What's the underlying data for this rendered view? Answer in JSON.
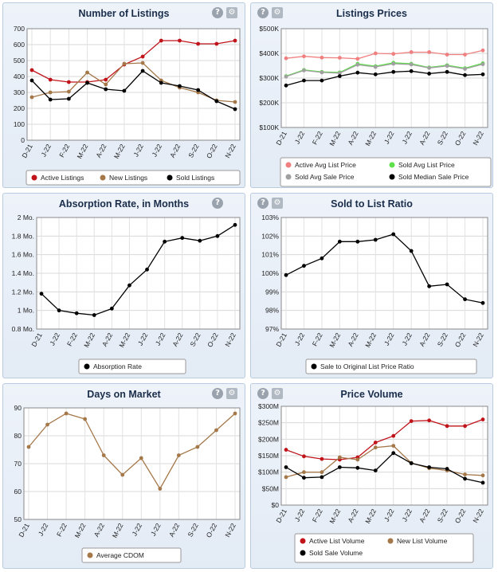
{
  "panels": [
    {
      "id": "listings",
      "title": "Number of Listings",
      "controls": [
        "help-icon",
        "settings-icon"
      ]
    },
    {
      "id": "prices",
      "title": "Listings Prices",
      "controls": [
        "help-icon",
        "settings-icon"
      ]
    },
    {
      "id": "absorption",
      "title": "Absorption Rate, in Months",
      "controls": [
        "help-icon"
      ]
    },
    {
      "id": "sold_list",
      "title": "Sold to List Ratio",
      "controls": [
        "help-icon",
        "settings-icon"
      ]
    },
    {
      "id": "dom",
      "title": "Days on Market",
      "controls": [
        "help-icon",
        "settings-icon"
      ]
    },
    {
      "id": "volume",
      "title": "Price Volume",
      "controls": [
        "help-icon",
        "settings-icon"
      ]
    }
  ],
  "chart_data": [
    {
      "type": "line",
      "title": "Number of Listings",
      "categories": [
        "D-21",
        "J-22",
        "F-22",
        "M-22",
        "A-22",
        "M-22",
        "J-22",
        "J-22",
        "A-22",
        "S-22",
        "O-22",
        "N-22"
      ],
      "ylim": [
        0,
        700
      ],
      "yticks": [
        0,
        100,
        200,
        300,
        400,
        500,
        600,
        700
      ],
      "ytick_labels": [
        "0",
        "100",
        "200",
        "300",
        "400",
        "500",
        "600",
        "700"
      ],
      "grid": true,
      "legend_position": "bottom",
      "series": [
        {
          "name": "Active Listings",
          "color": "#c0141a",
          "values": [
            440,
            380,
            365,
            365,
            380,
            475,
            525,
            625,
            625,
            605,
            605,
            625
          ]
        },
        {
          "name": "New Listings",
          "color": "#a5784a",
          "values": [
            270,
            300,
            305,
            425,
            350,
            480,
            485,
            375,
            330,
            300,
            250,
            240
          ]
        },
        {
          "name": "Sold Listings",
          "color": "#000000",
          "values": [
            375,
            255,
            260,
            360,
            320,
            310,
            435,
            360,
            340,
            315,
            245,
            195
          ]
        }
      ]
    },
    {
      "type": "line",
      "title": "Listings Prices",
      "categories": [
        "D-21",
        "J-22",
        "F-22",
        "M-22",
        "A-22",
        "M-22",
        "J-22",
        "J-22",
        "A-22",
        "S-22",
        "O-22",
        "N-22"
      ],
      "ylim": [
        100000,
        500000
      ],
      "yticks": [
        100000,
        200000,
        300000,
        400000,
        500000
      ],
      "ytick_labels": [
        "$100K",
        "$200K",
        "$300K",
        "$400K",
        "$500K"
      ],
      "grid": true,
      "legend_position": "bottom",
      "series": [
        {
          "name": "Active Avg List Price",
          "color": "#f08080",
          "values": [
            380000,
            388000,
            383000,
            382000,
            378000,
            400000,
            398000,
            405000,
            405000,
            395000,
            395000,
            412000
          ]
        },
        {
          "name": "Sold Avg List Price",
          "color": "#5ee04a",
          "values": [
            308000,
            333000,
            325000,
            323000,
            358000,
            348000,
            362000,
            358000,
            343000,
            352000,
            340000,
            360000
          ]
        },
        {
          "name": "Sold Avg Sale Price",
          "color": "#a0a0a0",
          "values": [
            306000,
            331000,
            323000,
            320000,
            354000,
            345000,
            358000,
            355000,
            341000,
            349000,
            337000,
            356000
          ]
        },
        {
          "name": "Sold Median Sale Price",
          "color": "#000000",
          "values": [
            270000,
            290000,
            290000,
            308000,
            322000,
            315000,
            325000,
            328000,
            318000,
            325000,
            312000,
            315000
          ]
        }
      ]
    },
    {
      "type": "line",
      "title": "Absorption Rate, in Months",
      "categories": [
        "D-21",
        "J-22",
        "F-22",
        "M-22",
        "A-22",
        "M-22",
        "J-22",
        "J-22",
        "A-22",
        "S-22",
        "O-22",
        "N-22"
      ],
      "ylim": [
        0.8,
        2.0
      ],
      "yticks": [
        0.8,
        1.0,
        1.2,
        1.4,
        1.6,
        1.8,
        2.0
      ],
      "ytick_labels": [
        "0.8 Mo.",
        "1 Mo.",
        "1.2 Mo.",
        "1.4 Mo.",
        "1.6 Mo.",
        "1.8 Mo.",
        "2 Mo."
      ],
      "grid": true,
      "legend_position": "bottom",
      "series": [
        {
          "name": "Absorption Rate",
          "color": "#000000",
          "values": [
            1.18,
            1.0,
            0.97,
            0.95,
            1.02,
            1.27,
            1.44,
            1.74,
            1.78,
            1.75,
            1.8,
            1.92
          ]
        }
      ]
    },
    {
      "type": "line",
      "title": "Sold to List Ratio",
      "categories": [
        "D-21",
        "J-22",
        "F-22",
        "M-22",
        "A-22",
        "M-22",
        "J-22",
        "J-22",
        "A-22",
        "S-22",
        "O-22",
        "N-22"
      ],
      "ylim": [
        97,
        103
      ],
      "yticks": [
        97,
        98,
        99,
        100,
        101,
        102,
        103
      ],
      "ytick_labels": [
        "97%",
        "98%",
        "99%",
        "100%",
        "101%",
        "102%",
        "103%"
      ],
      "grid": true,
      "legend_position": "bottom",
      "series": [
        {
          "name": "Sale to Original List Price Ratio",
          "color": "#000000",
          "values": [
            99.9,
            100.4,
            100.8,
            101.7,
            101.7,
            101.8,
            102.1,
            101.2,
            99.3,
            99.4,
            98.6,
            98.4
          ]
        }
      ]
    },
    {
      "type": "line",
      "title": "Days on Market",
      "categories": [
        "D-21",
        "J-22",
        "F-22",
        "M-22",
        "A-22",
        "M-22",
        "J-22",
        "J-22",
        "A-22",
        "S-22",
        "O-22",
        "N-22"
      ],
      "ylim": [
        50,
        90
      ],
      "yticks": [
        50,
        60,
        70,
        80,
        90
      ],
      "ytick_labels": [
        "50",
        "60",
        "70",
        "80",
        "90"
      ],
      "grid": true,
      "legend_position": "bottom",
      "series": [
        {
          "name": "Average CDOM",
          "color": "#a5784a",
          "values": [
            76,
            84,
            88,
            86,
            73,
            66,
            72,
            61,
            73,
            76,
            82,
            88
          ]
        }
      ]
    },
    {
      "type": "line",
      "title": "Price Volume",
      "categories": [
        "D-21",
        "J-22",
        "F-22",
        "M-22",
        "A-22",
        "M-22",
        "J-22",
        "J-22",
        "A-22",
        "S-22",
        "O-22",
        "N-22"
      ],
      "ylim": [
        0,
        300000000
      ],
      "yticks": [
        0,
        50000000,
        100000000,
        150000000,
        200000000,
        250000000,
        300000000
      ],
      "ytick_labels": [
        "$0",
        "$50M",
        "$100M",
        "$150M",
        "$200M",
        "$250M",
        "$300M"
      ],
      "grid": true,
      "legend_position": "bottom",
      "series": [
        {
          "name": "Active List Volume",
          "color": "#c0141a",
          "values": [
            168000000,
            148000000,
            140000000,
            138000000,
            145000000,
            190000000,
            210000000,
            255000000,
            257000000,
            240000000,
            240000000,
            260000000
          ]
        },
        {
          "name": "New List Volume",
          "color": "#a5784a",
          "values": [
            85000000,
            100000000,
            100000000,
            145000000,
            138000000,
            175000000,
            180000000,
            128000000,
            112000000,
            105000000,
            93000000,
            90000000
          ]
        },
        {
          "name": "Sold Sale Volume",
          "color": "#000000",
          "values": [
            115000000,
            83000000,
            85000000,
            115000000,
            113000000,
            105000000,
            158000000,
            127000000,
            115000000,
            110000000,
            80000000,
            68000000
          ]
        }
      ]
    }
  ]
}
